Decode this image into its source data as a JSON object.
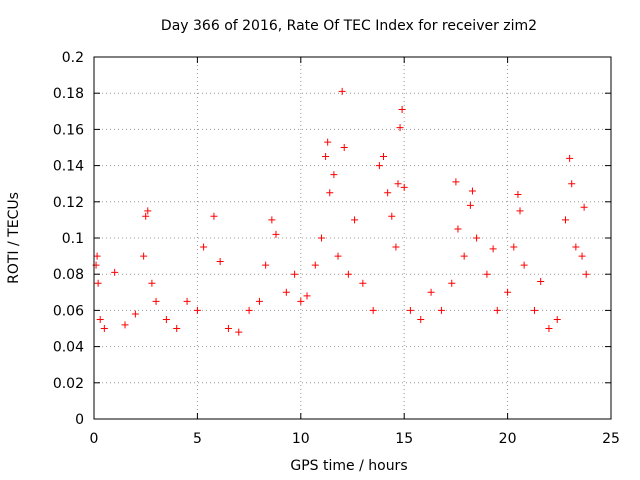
{
  "chart_data": {
    "type": "scatter",
    "title": "Day 366 of 2016, Rate Of TEC Index for receiver zim2",
    "xlabel": "GPS time / hours",
    "ylabel": "ROTI / TECUs",
    "xlim": [
      0,
      25
    ],
    "ylim": [
      0,
      0.2
    ],
    "x_ticks": [
      "0",
      "5",
      "10",
      "15",
      "20",
      "25"
    ],
    "y_ticks": [
      "0",
      "0.02",
      "0.04",
      "0.06",
      "0.08",
      "0.1",
      "0.12",
      "0.14",
      "0.16",
      "0.18",
      "0.2"
    ],
    "grid": true,
    "marker": "+",
    "color": "#ff0000",
    "series": [
      {
        "points": [
          [
            0.1,
            0.085
          ],
          [
            0.15,
            0.09
          ],
          [
            0.2,
            0.075
          ],
          [
            0.3,
            0.055
          ],
          [
            0.5,
            0.05
          ],
          [
            1.0,
            0.081
          ],
          [
            1.5,
            0.052
          ],
          [
            2.0,
            0.058
          ],
          [
            2.4,
            0.09
          ],
          [
            2.5,
            0.112
          ],
          [
            2.6,
            0.115
          ],
          [
            2.8,
            0.075
          ],
          [
            3.0,
            0.065
          ],
          [
            3.5,
            0.055
          ],
          [
            4.0,
            0.05
          ],
          [
            4.5,
            0.065
          ],
          [
            5.0,
            0.06
          ],
          [
            5.3,
            0.095
          ],
          [
            5.8,
            0.112
          ],
          [
            6.1,
            0.087
          ],
          [
            6.5,
            0.05
          ],
          [
            7.0,
            0.048
          ],
          [
            7.5,
            0.06
          ],
          [
            8.0,
            0.065
          ],
          [
            8.3,
            0.085
          ],
          [
            8.6,
            0.11
          ],
          [
            8.8,
            0.102
          ],
          [
            9.3,
            0.07
          ],
          [
            9.7,
            0.08
          ],
          [
            10.0,
            0.065
          ],
          [
            10.3,
            0.068
          ],
          [
            10.7,
            0.085
          ],
          [
            11.0,
            0.1
          ],
          [
            11.2,
            0.145
          ],
          [
            11.3,
            0.153
          ],
          [
            11.4,
            0.125
          ],
          [
            11.6,
            0.135
          ],
          [
            11.8,
            0.09
          ],
          [
            12.0,
            0.181
          ],
          [
            12.1,
            0.15
          ],
          [
            12.3,
            0.08
          ],
          [
            12.6,
            0.11
          ],
          [
            13.0,
            0.075
          ],
          [
            13.5,
            0.06
          ],
          [
            13.8,
            0.14
          ],
          [
            14.0,
            0.145
          ],
          [
            14.2,
            0.125
          ],
          [
            14.4,
            0.112
          ],
          [
            14.6,
            0.095
          ],
          [
            14.7,
            0.13
          ],
          [
            14.8,
            0.161
          ],
          [
            14.9,
            0.171
          ],
          [
            15.0,
            0.128
          ],
          [
            15.3,
            0.06
          ],
          [
            15.8,
            0.055
          ],
          [
            16.3,
            0.07
          ],
          [
            16.8,
            0.06
          ],
          [
            17.3,
            0.075
          ],
          [
            17.5,
            0.131
          ],
          [
            17.6,
            0.105
          ],
          [
            17.9,
            0.09
          ],
          [
            18.2,
            0.118
          ],
          [
            18.3,
            0.126
          ],
          [
            18.5,
            0.1
          ],
          [
            19.0,
            0.08
          ],
          [
            19.3,
            0.094
          ],
          [
            19.5,
            0.06
          ],
          [
            20.0,
            0.07
          ],
          [
            20.3,
            0.095
          ],
          [
            20.5,
            0.124
          ],
          [
            20.6,
            0.115
          ],
          [
            20.8,
            0.085
          ],
          [
            21.3,
            0.06
          ],
          [
            21.6,
            0.076
          ],
          [
            22.0,
            0.05
          ],
          [
            22.4,
            0.055
          ],
          [
            22.8,
            0.11
          ],
          [
            23.0,
            0.144
          ],
          [
            23.1,
            0.13
          ],
          [
            23.3,
            0.095
          ],
          [
            23.6,
            0.09
          ],
          [
            23.7,
            0.117
          ],
          [
            23.8,
            0.08
          ]
        ]
      }
    ]
  }
}
